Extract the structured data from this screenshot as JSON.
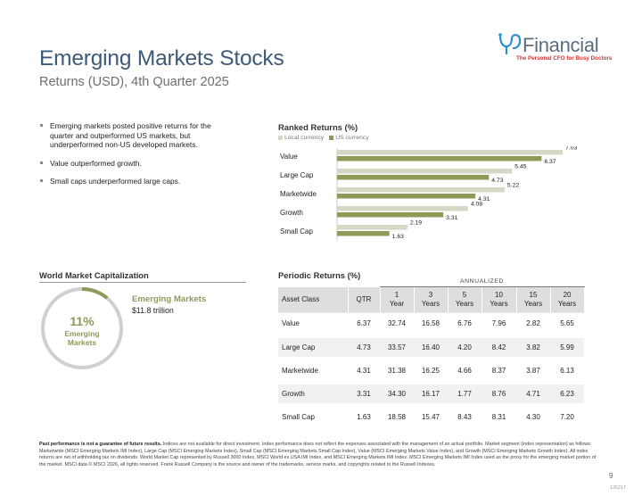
{
  "header": {
    "title": "Emerging Markets Stocks",
    "subtitle": "Returns (USD), 4th Quarter 2025"
  },
  "logo": {
    "name": "Financial",
    "tagline": "The Personal CFO for Busy Doctors",
    "brand_color": "#d1342f",
    "text_color": "#5a6e7e"
  },
  "bullets": [
    "Emerging markets posted positive returns for the quarter and outperformed US markets, but underperformed non-US developed markets.",
    "Value outperformed growth.",
    "Small caps underperformed large caps."
  ],
  "ranked": {
    "title": "Ranked Returns (%)",
    "legend_local": "Local currency",
    "legend_us": "US currency",
    "colors": {
      "local": "#d3d9c4",
      "us": "#8d9a58"
    }
  },
  "chart_data": {
    "type": "bar",
    "orientation": "horizontal",
    "title": "Ranked Returns (%)",
    "categories": [
      "Value",
      "Large Cap",
      "Marketwide",
      "Growth",
      "Small Cap"
    ],
    "series": [
      {
        "name": "Local currency",
        "values": [
          7.03,
          5.45,
          5.22,
          4.08,
          2.19
        ]
      },
      {
        "name": "US currency",
        "values": [
          6.37,
          4.73,
          4.31,
          3.31,
          1.63
        ]
      }
    ],
    "xlim": [
      0,
      7.5
    ],
    "legend": "top-left"
  },
  "world_cap": {
    "title": "World Market Capitalization",
    "percent": "11%",
    "percent_value": 11,
    "center_label_line1": "Emerging",
    "center_label_line2": "Markets",
    "label": "Emerging Markets",
    "value": "$11.8 trillion",
    "colors": {
      "segment": "#8d9a58",
      "remainder": "#d0d0d0"
    }
  },
  "periodic": {
    "title": "Periodic Returns (%)",
    "annualized_label": "ANNUALIZED",
    "columns": [
      {
        "line1": "Asset Class",
        "line2": ""
      },
      {
        "line1": "QTR",
        "line2": ""
      },
      {
        "line1": "1",
        "line2": "Year"
      },
      {
        "line1": "3",
        "line2": "Years"
      },
      {
        "line1": "5",
        "line2": "Years"
      },
      {
        "line1": "10",
        "line2": "Years"
      },
      {
        "line1": "15",
        "line2": "Years"
      },
      {
        "line1": "20",
        "line2": "Years"
      }
    ],
    "rows": [
      [
        "Value",
        "6.37",
        "32.74",
        "16.58",
        "6.76",
        "7.96",
        "2.82",
        "5.65"
      ],
      [
        "Large Cap",
        "4.73",
        "33.57",
        "16.40",
        "4.20",
        "8.42",
        "3.82",
        "5.99"
      ],
      [
        "Marketwide",
        "4.31",
        "31.38",
        "16.25",
        "4.66",
        "8.37",
        "3.87",
        "6.13"
      ],
      [
        "Growth",
        "3.31",
        "34.30",
        "16.17",
        "1.77",
        "8.76",
        "4.71",
        "6.23"
      ],
      [
        "Small Cap",
        "1.63",
        "18.58",
        "15.47",
        "8.43",
        "8.31",
        "4.30",
        "7.20"
      ]
    ]
  },
  "footnote": {
    "bold": "Past performance is not a guarantee of future results.",
    "text": " Indices are not available for direct investment. Index performance does not reflect the expenses associated with the management of an actual portfolio. Market segment (index representation) as follows: Marketwide (MSCI Emerging Markets IMI Index), Large Cap (MSCI Emerging Markets Index), Small Cap (MSCI Emerging Markets Small Cap Index), Value (MSCI Emerging Markets Value Index), and Growth (MSCI Emerging Markets Growth Index). All index returns are net of withholding tax on dividends. World Market Cap represented by Russell 3000 Index, MSCI World ex USA IMI Index, and MSCI Emerging Markets IMI Index. MSCI Emerging Markets IMI Index used as the proxy for the emerging market portion of the market. MSCI data © MSCI 2026, all rights reserved. Frank Russell Company is the source and owner of the trademarks, service marks, and copyrights related to the Russell Indexes."
  },
  "page_number": "9",
  "doc_code": "135217"
}
